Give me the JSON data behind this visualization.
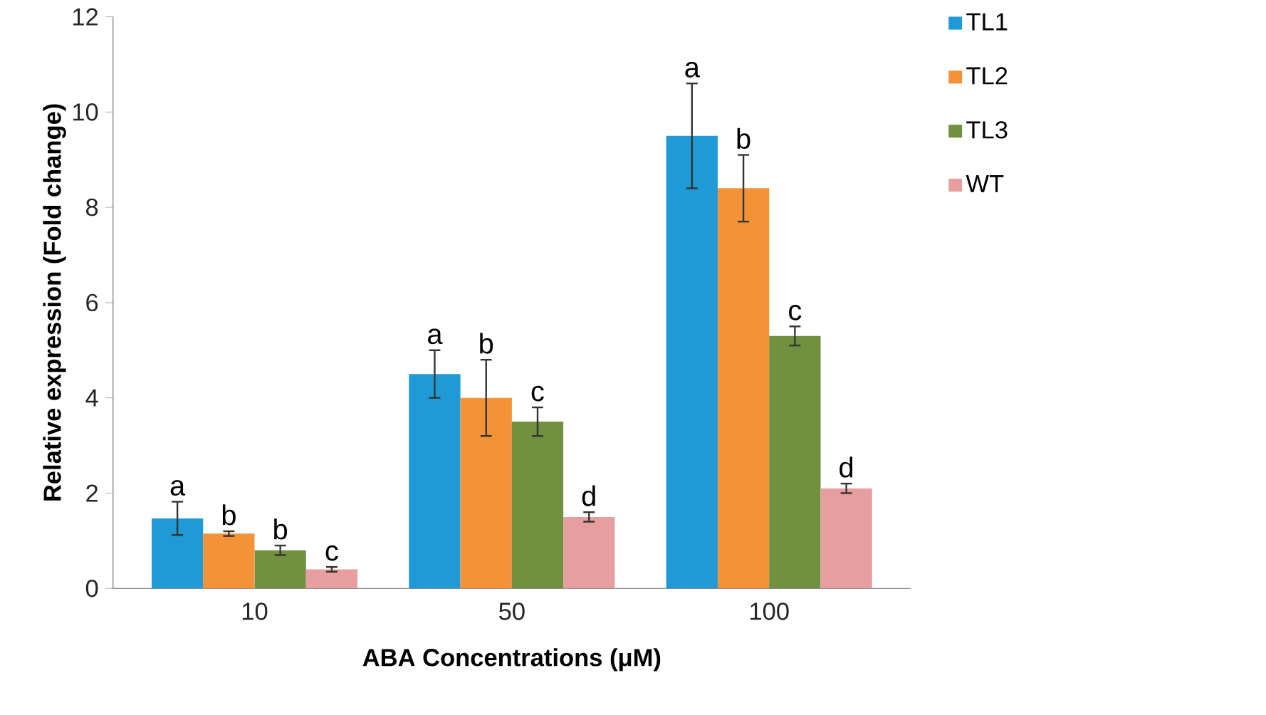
{
  "chart_data": {
    "type": "bar",
    "xlabel": "ABA Concentrations (μM)",
    "ylabel": "Relative expression (Fold change)",
    "categories": [
      "10",
      "50",
      "100"
    ],
    "series": [
      {
        "name": "TL1",
        "color": "#1f9ad6",
        "values": [
          1.47,
          4.5,
          9.5
        ],
        "errors": [
          0.35,
          0.5,
          1.1
        ],
        "value_labels": [
          "a",
          "a",
          "a"
        ]
      },
      {
        "name": "TL2",
        "color": "#f39237",
        "values": [
          1.15,
          4.0,
          8.4
        ],
        "errors": [
          0.05,
          0.8,
          0.7
        ],
        "value_labels": [
          "b",
          "b",
          "b"
        ]
      },
      {
        "name": "TL3",
        "color": "#70913f",
        "values": [
          0.8,
          3.5,
          5.3
        ],
        "errors": [
          0.1,
          0.3,
          0.2
        ],
        "value_labels": [
          "b",
          "c",
          "c"
        ]
      },
      {
        "name": "WT",
        "color": "#e69e9e",
        "values": [
          0.4,
          1.5,
          2.1
        ],
        "errors": [
          0.05,
          0.1,
          0.1
        ],
        "value_labels": [
          "c",
          "d",
          "d"
        ]
      }
    ],
    "ylim": [
      0,
      12
    ],
    "yticks": [
      0,
      2,
      4,
      6,
      8,
      10,
      12
    ],
    "legend": "right"
  }
}
